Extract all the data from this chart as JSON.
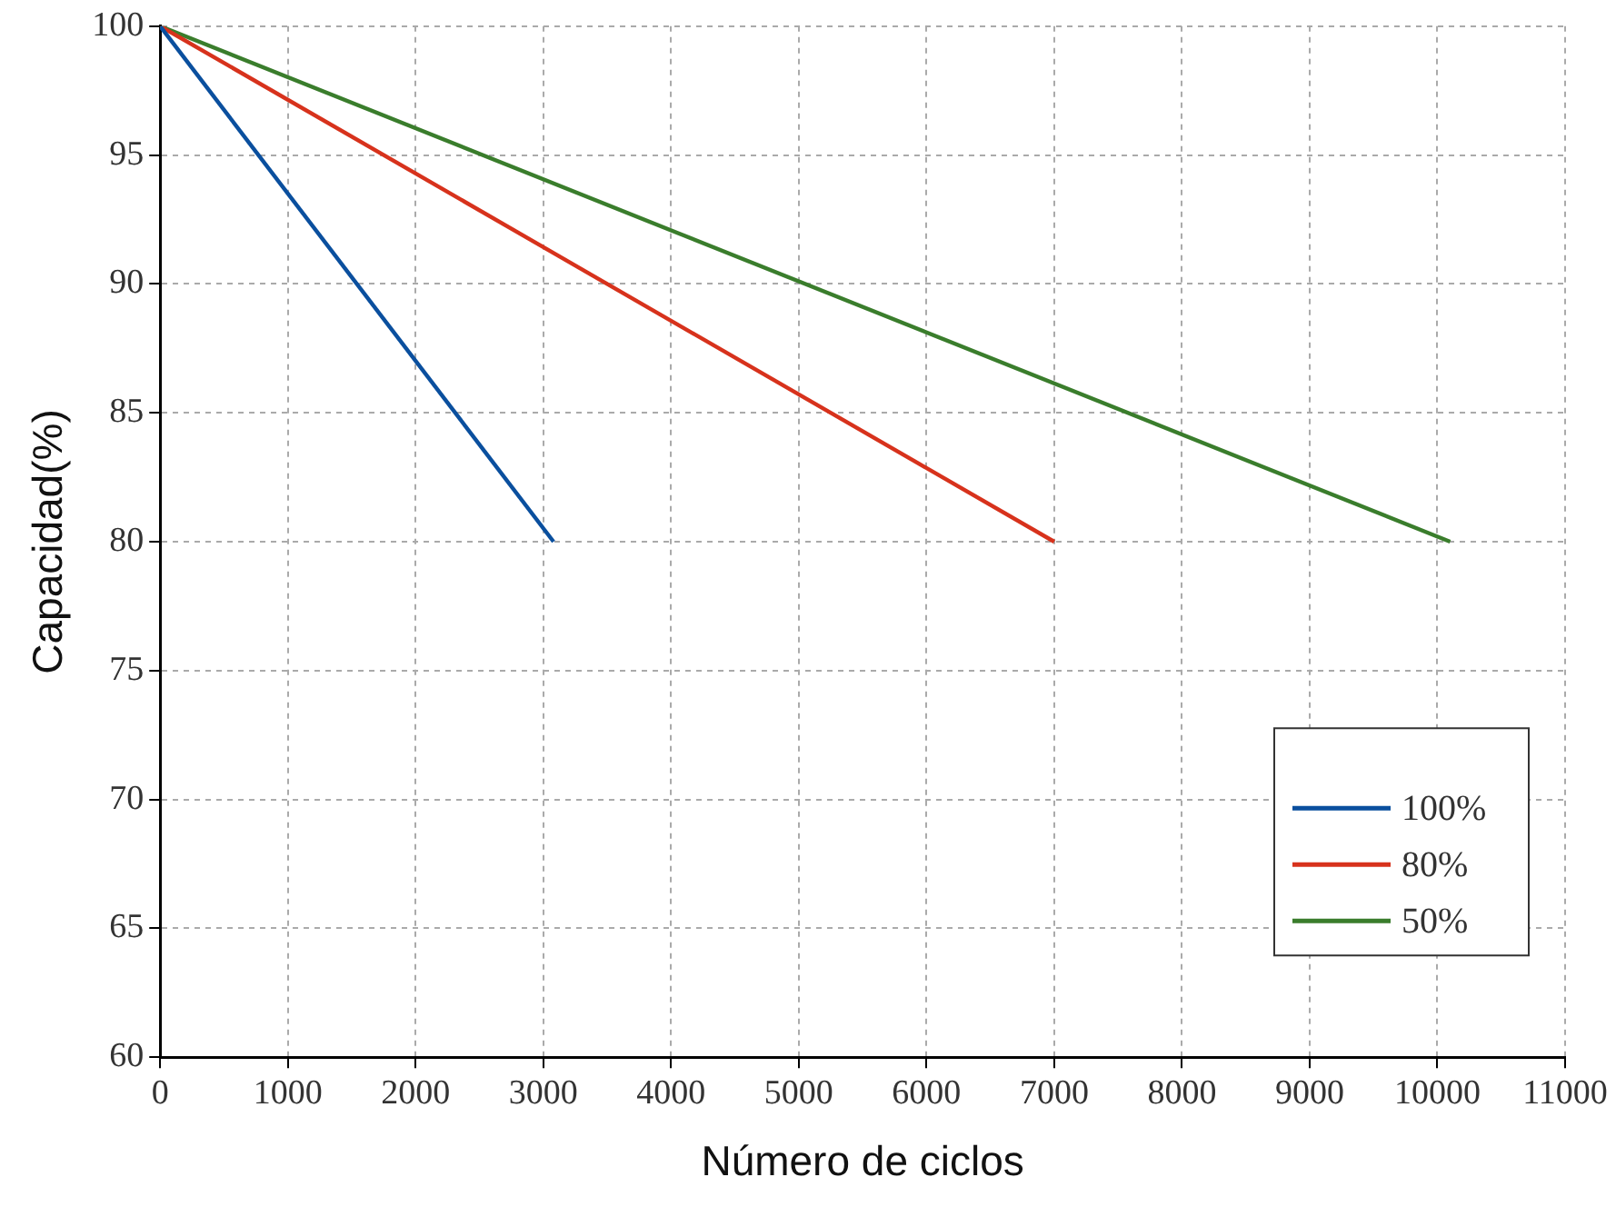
{
  "chart_data": {
    "type": "line",
    "xlabel": "Número de ciclos",
    "ylabel": "Capacidad(%)",
    "xlim": [
      0,
      11000
    ],
    "xticks": [
      0,
      1000,
      2000,
      3000,
      4000,
      5000,
      6000,
      7000,
      8000,
      9000,
      10000,
      11000
    ],
    "ylim": [
      60,
      100
    ],
    "yticks": [
      60,
      65,
      70,
      75,
      80,
      85,
      90,
      95,
      100
    ],
    "grid": true,
    "legend": "bottom right",
    "marker": "none",
    "line_style": "solid",
    "series": [
      {
        "name": "100%",
        "color": "#0a4f9e",
        "x": [
          0,
          3080
        ],
        "values": [
          100,
          80
        ]
      },
      {
        "name": "80%",
        "color": "#d7321c",
        "x": [
          0,
          7000
        ],
        "values": [
          100,
          80
        ]
      },
      {
        "name": "50%",
        "color": "#3a7d2c",
        "x": [
          0,
          10100
        ],
        "values": [
          100,
          80
        ]
      }
    ]
  }
}
